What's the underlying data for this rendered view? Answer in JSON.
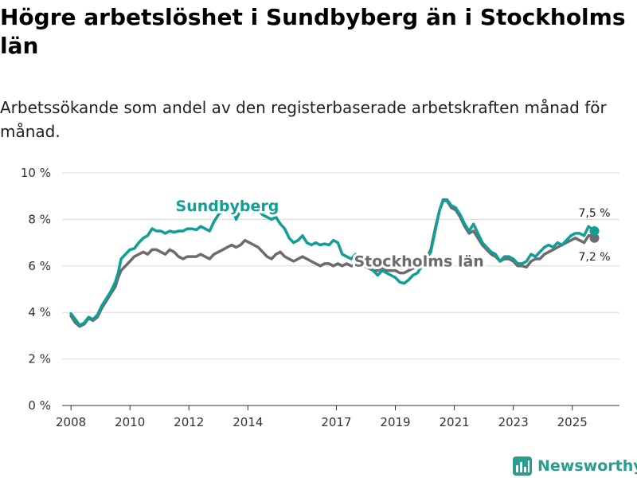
{
  "colors": {
    "sundbyberg": "#119e94",
    "stockholm": "#6b6b70",
    "grid": "#d9d9d9",
    "axis": "#333333",
    "brand": "#2a9d8f"
  },
  "chart_data": {
    "type": "line",
    "title": "Högre arbetslöshet i Sundbyberg än i Stockholms län",
    "subtitle": "Arbetssökande som andel av den registerbaserade arbetskraften månad för månad.",
    "xlabel": "",
    "ylabel": "",
    "ylim": [
      0,
      10
    ],
    "xlim": [
      2007.7,
      2026.6
    ],
    "y_ticks": [
      {
        "value": 0,
        "label": "0 %"
      },
      {
        "value": 2,
        "label": "2 %"
      },
      {
        "value": 4,
        "label": "4 %"
      },
      {
        "value": 6,
        "label": "6 %"
      },
      {
        "value": 8,
        "label": "8 %"
      },
      {
        "value": 10,
        "label": "10 %"
      }
    ],
    "x_ticks": [
      {
        "value": 2008,
        "label": "2008"
      },
      {
        "value": 2010,
        "label": "2010"
      },
      {
        "value": 2012,
        "label": "2012"
      },
      {
        "value": 2014,
        "label": "2014"
      },
      {
        "value": 2017,
        "label": "2017"
      },
      {
        "value": 2019,
        "label": "2019"
      },
      {
        "value": 2021,
        "label": "2021"
      },
      {
        "value": 2023,
        "label": "2023"
      },
      {
        "value": 2025,
        "label": "2025"
      }
    ],
    "grid": true,
    "legend": "inline labels",
    "series": [
      {
        "name": "Sundbyberg",
        "label": "Sundbyberg",
        "end_label": "7,5 %",
        "points": [
          [
            2008.0,
            3.95
          ],
          [
            2008.15,
            3.7
          ],
          [
            2008.3,
            3.45
          ],
          [
            2008.45,
            3.55
          ],
          [
            2008.6,
            3.8
          ],
          [
            2008.75,
            3.7
          ],
          [
            2008.9,
            3.9
          ],
          [
            2009.05,
            4.3
          ],
          [
            2009.2,
            4.6
          ],
          [
            2009.35,
            4.9
          ],
          [
            2009.5,
            5.3
          ],
          [
            2009.6,
            5.7
          ],
          [
            2009.7,
            6.3
          ],
          [
            2009.85,
            6.5
          ],
          [
            2010.0,
            6.7
          ],
          [
            2010.15,
            6.75
          ],
          [
            2010.3,
            7.0
          ],
          [
            2010.45,
            7.2
          ],
          [
            2010.6,
            7.3
          ],
          [
            2010.75,
            7.6
          ],
          [
            2010.9,
            7.5
          ],
          [
            2011.05,
            7.5
          ],
          [
            2011.2,
            7.4
          ],
          [
            2011.35,
            7.5
          ],
          [
            2011.5,
            7.45
          ],
          [
            2011.65,
            7.5
          ],
          [
            2011.8,
            7.5
          ],
          [
            2011.95,
            7.6
          ],
          [
            2012.1,
            7.6
          ],
          [
            2012.25,
            7.55
          ],
          [
            2012.4,
            7.7
          ],
          [
            2012.55,
            7.6
          ],
          [
            2012.7,
            7.5
          ],
          [
            2012.85,
            7.9
          ],
          [
            2013.0,
            8.2
          ],
          [
            2013.15,
            8.4
          ],
          [
            2013.3,
            8.5
          ],
          [
            2013.45,
            8.6
          ],
          [
            2013.6,
            8.0
          ],
          [
            2013.75,
            8.4
          ],
          [
            2013.9,
            8.7
          ],
          [
            2014.05,
            8.5
          ],
          [
            2014.2,
            8.3
          ],
          [
            2014.35,
            8.4
          ],
          [
            2014.5,
            8.2
          ],
          [
            2014.65,
            8.1
          ],
          [
            2014.8,
            8.0
          ],
          [
            2014.95,
            8.1
          ],
          [
            2015.1,
            7.8
          ],
          [
            2015.25,
            7.6
          ],
          [
            2015.4,
            7.2
          ],
          [
            2015.55,
            7.0
          ],
          [
            2015.7,
            7.1
          ],
          [
            2015.85,
            7.3
          ],
          [
            2016.0,
            7.0
          ],
          [
            2016.15,
            6.9
          ],
          [
            2016.3,
            7.0
          ],
          [
            2016.45,
            6.9
          ],
          [
            2016.6,
            6.95
          ],
          [
            2016.75,
            6.9
          ],
          [
            2016.9,
            7.1
          ],
          [
            2017.05,
            7.0
          ],
          [
            2017.2,
            6.5
          ],
          [
            2017.35,
            6.4
          ],
          [
            2017.5,
            6.3
          ],
          [
            2017.65,
            6.5
          ],
          [
            2017.8,
            6.35
          ],
          [
            2017.95,
            6.2
          ],
          [
            2018.1,
            6.0
          ],
          [
            2018.25,
            5.8
          ],
          [
            2018.4,
            5.6
          ],
          [
            2018.55,
            5.8
          ],
          [
            2018.7,
            5.7
          ],
          [
            2018.85,
            5.6
          ],
          [
            2019.0,
            5.5
          ],
          [
            2019.15,
            5.3
          ],
          [
            2019.3,
            5.25
          ],
          [
            2019.45,
            5.4
          ],
          [
            2019.6,
            5.6
          ],
          [
            2019.75,
            5.7
          ],
          [
            2019.9,
            6.0
          ],
          [
            2020.05,
            6.3
          ],
          [
            2020.2,
            6.6
          ],
          [
            2020.35,
            7.5
          ],
          [
            2020.5,
            8.4
          ],
          [
            2020.62,
            8.85
          ],
          [
            2020.75,
            8.85
          ],
          [
            2020.9,
            8.6
          ],
          [
            2021.05,
            8.5
          ],
          [
            2021.2,
            8.2
          ],
          [
            2021.35,
            7.8
          ],
          [
            2021.5,
            7.5
          ],
          [
            2021.65,
            7.8
          ],
          [
            2021.8,
            7.4
          ],
          [
            2021.95,
            7.0
          ],
          [
            2022.1,
            6.8
          ],
          [
            2022.25,
            6.6
          ],
          [
            2022.4,
            6.5
          ],
          [
            2022.55,
            6.2
          ],
          [
            2022.7,
            6.4
          ],
          [
            2022.85,
            6.4
          ],
          [
            2023.0,
            6.3
          ],
          [
            2023.15,
            6.1
          ],
          [
            2023.3,
            6.1
          ],
          [
            2023.45,
            6.2
          ],
          [
            2023.6,
            6.5
          ],
          [
            2023.75,
            6.4
          ],
          [
            2023.9,
            6.6
          ],
          [
            2024.05,
            6.8
          ],
          [
            2024.2,
            6.9
          ],
          [
            2024.35,
            6.8
          ],
          [
            2024.5,
            7.0
          ],
          [
            2024.65,
            6.9
          ],
          [
            2024.8,
            7.1
          ],
          [
            2024.95,
            7.3
          ],
          [
            2025.1,
            7.4
          ],
          [
            2025.25,
            7.4
          ],
          [
            2025.4,
            7.3
          ],
          [
            2025.55,
            7.7
          ],
          [
            2025.65,
            7.6
          ],
          [
            2025.75,
            7.5
          ]
        ]
      },
      {
        "name": "Stockholms län",
        "label": "Stockholms län",
        "end_label": "7,2 %",
        "points": [
          [
            2008.0,
            3.85
          ],
          [
            2008.15,
            3.55
          ],
          [
            2008.3,
            3.4
          ],
          [
            2008.45,
            3.5
          ],
          [
            2008.6,
            3.75
          ],
          [
            2008.75,
            3.65
          ],
          [
            2008.9,
            3.8
          ],
          [
            2009.05,
            4.2
          ],
          [
            2009.2,
            4.5
          ],
          [
            2009.35,
            4.8
          ],
          [
            2009.5,
            5.1
          ],
          [
            2009.6,
            5.5
          ],
          [
            2009.7,
            5.8
          ],
          [
            2009.85,
            6.0
          ],
          [
            2010.0,
            6.2
          ],
          [
            2010.15,
            6.4
          ],
          [
            2010.3,
            6.5
          ],
          [
            2010.45,
            6.6
          ],
          [
            2010.6,
            6.5
          ],
          [
            2010.75,
            6.7
          ],
          [
            2010.9,
            6.7
          ],
          [
            2011.05,
            6.6
          ],
          [
            2011.2,
            6.5
          ],
          [
            2011.35,
            6.7
          ],
          [
            2011.5,
            6.6
          ],
          [
            2011.65,
            6.4
          ],
          [
            2011.8,
            6.3
          ],
          [
            2011.95,
            6.4
          ],
          [
            2012.1,
            6.4
          ],
          [
            2012.25,
            6.4
          ],
          [
            2012.4,
            6.5
          ],
          [
            2012.55,
            6.4
          ],
          [
            2012.7,
            6.3
          ],
          [
            2012.85,
            6.5
          ],
          [
            2013.0,
            6.6
          ],
          [
            2013.15,
            6.7
          ],
          [
            2013.3,
            6.8
          ],
          [
            2013.45,
            6.9
          ],
          [
            2013.6,
            6.8
          ],
          [
            2013.75,
            6.9
          ],
          [
            2013.9,
            7.1
          ],
          [
            2014.05,
            7.0
          ],
          [
            2014.2,
            6.9
          ],
          [
            2014.35,
            6.8
          ],
          [
            2014.5,
            6.6
          ],
          [
            2014.65,
            6.4
          ],
          [
            2014.8,
            6.3
          ],
          [
            2014.95,
            6.5
          ],
          [
            2015.1,
            6.6
          ],
          [
            2015.25,
            6.4
          ],
          [
            2015.4,
            6.3
          ],
          [
            2015.55,
            6.2
          ],
          [
            2015.7,
            6.3
          ],
          [
            2015.85,
            6.4
          ],
          [
            2016.0,
            6.3
          ],
          [
            2016.15,
            6.2
          ],
          [
            2016.3,
            6.1
          ],
          [
            2016.45,
            6.0
          ],
          [
            2016.6,
            6.1
          ],
          [
            2016.75,
            6.1
          ],
          [
            2016.9,
            6.0
          ],
          [
            2017.05,
            6.1
          ],
          [
            2017.2,
            6.0
          ],
          [
            2017.35,
            6.1
          ],
          [
            2017.5,
            6.0
          ],
          [
            2017.65,
            6.0
          ],
          [
            2017.8,
            6.1
          ],
          [
            2017.95,
            6.0
          ],
          [
            2018.1,
            5.9
          ],
          [
            2018.25,
            5.8
          ],
          [
            2018.4,
            5.8
          ],
          [
            2018.55,
            5.9
          ],
          [
            2018.7,
            5.8
          ],
          [
            2018.85,
            5.8
          ],
          [
            2019.0,
            5.8
          ],
          [
            2019.15,
            5.7
          ],
          [
            2019.3,
            5.7
          ],
          [
            2019.45,
            5.8
          ],
          [
            2019.6,
            5.9
          ],
          [
            2019.75,
            6.0
          ],
          [
            2019.9,
            6.1
          ],
          [
            2020.05,
            6.3
          ],
          [
            2020.2,
            6.7
          ],
          [
            2020.35,
            7.6
          ],
          [
            2020.5,
            8.4
          ],
          [
            2020.62,
            8.8
          ],
          [
            2020.75,
            8.8
          ],
          [
            2020.9,
            8.5
          ],
          [
            2021.05,
            8.4
          ],
          [
            2021.2,
            8.1
          ],
          [
            2021.35,
            7.7
          ],
          [
            2021.5,
            7.4
          ],
          [
            2021.65,
            7.5
          ],
          [
            2021.8,
            7.2
          ],
          [
            2021.95,
            6.9
          ],
          [
            2022.1,
            6.7
          ],
          [
            2022.25,
            6.5
          ],
          [
            2022.4,
            6.4
          ],
          [
            2022.55,
            6.2
          ],
          [
            2022.7,
            6.3
          ],
          [
            2022.85,
            6.3
          ],
          [
            2023.0,
            6.2
          ],
          [
            2023.15,
            6.0
          ],
          [
            2023.3,
            6.0
          ],
          [
            2023.45,
            5.95
          ],
          [
            2023.6,
            6.2
          ],
          [
            2023.75,
            6.3
          ],
          [
            2023.9,
            6.3
          ],
          [
            2024.05,
            6.5
          ],
          [
            2024.2,
            6.6
          ],
          [
            2024.35,
            6.7
          ],
          [
            2024.5,
            6.8
          ],
          [
            2024.65,
            6.9
          ],
          [
            2024.8,
            7.0
          ],
          [
            2024.95,
            7.1
          ],
          [
            2025.1,
            7.2
          ],
          [
            2025.25,
            7.1
          ],
          [
            2025.4,
            7.0
          ],
          [
            2025.55,
            7.3
          ],
          [
            2025.65,
            7.3
          ],
          [
            2025.75,
            7.2
          ]
        ]
      }
    ]
  },
  "brand": {
    "name": "Newsworthy",
    "icon": "bar-chart-logo-icon"
  }
}
